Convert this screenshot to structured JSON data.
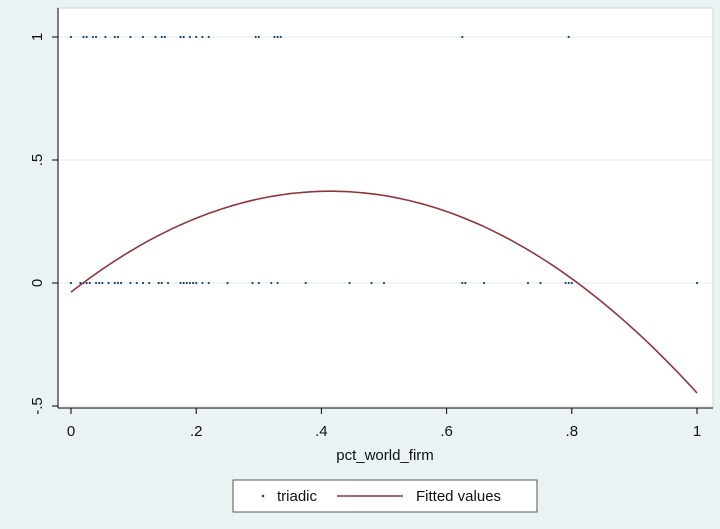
{
  "chart_data": {
    "type": "scatter",
    "xlabel": "pct_world_firm",
    "ylabel": "",
    "xlim": [
      0,
      1
    ],
    "ylim": [
      -0.5,
      1
    ],
    "x_ticks": [
      0,
      0.2,
      0.4,
      0.6,
      0.8,
      1
    ],
    "x_tick_labels": [
      "0",
      ".2",
      ".4",
      ".6",
      ".8",
      "1"
    ],
    "y_ticks": [
      -0.5,
      0,
      0.5,
      1
    ],
    "y_tick_labels": [
      "-.5",
      "0",
      ".5",
      "1"
    ],
    "grid": "horizontal",
    "legend_position": "bottom",
    "series": [
      {
        "name": "triadic",
        "kind": "scatter",
        "color": "#1a476f",
        "points": [
          [
            0.0,
            1
          ],
          [
            0.02,
            1
          ],
          [
            0.025,
            1
          ],
          [
            0.035,
            1
          ],
          [
            0.04,
            1
          ],
          [
            0.055,
            1
          ],
          [
            0.07,
            1
          ],
          [
            0.075,
            1
          ],
          [
            0.095,
            1
          ],
          [
            0.115,
            1
          ],
          [
            0.135,
            1
          ],
          [
            0.145,
            1
          ],
          [
            0.15,
            1
          ],
          [
            0.175,
            1
          ],
          [
            0.18,
            1
          ],
          [
            0.19,
            1
          ],
          [
            0.2,
            1
          ],
          [
            0.21,
            1
          ],
          [
            0.22,
            1
          ],
          [
            0.295,
            1
          ],
          [
            0.3,
            1
          ],
          [
            0.325,
            1
          ],
          [
            0.33,
            1
          ],
          [
            0.335,
            1
          ],
          [
            0.625,
            1
          ],
          [
            0.795,
            1
          ],
          [
            0.0,
            0
          ],
          [
            0.015,
            0
          ],
          [
            0.02,
            0
          ],
          [
            0.025,
            0
          ],
          [
            0.03,
            0
          ],
          [
            0.04,
            0
          ],
          [
            0.045,
            0
          ],
          [
            0.05,
            0
          ],
          [
            0.06,
            0
          ],
          [
            0.07,
            0
          ],
          [
            0.075,
            0
          ],
          [
            0.08,
            0
          ],
          [
            0.095,
            0
          ],
          [
            0.105,
            0
          ],
          [
            0.115,
            0
          ],
          [
            0.125,
            0
          ],
          [
            0.14,
            0
          ],
          [
            0.145,
            0
          ],
          [
            0.155,
            0
          ],
          [
            0.175,
            0
          ],
          [
            0.18,
            0
          ],
          [
            0.185,
            0
          ],
          [
            0.19,
            0
          ],
          [
            0.195,
            0
          ],
          [
            0.2,
            0
          ],
          [
            0.21,
            0
          ],
          [
            0.22,
            0
          ],
          [
            0.25,
            0
          ],
          [
            0.29,
            0
          ],
          [
            0.3,
            0
          ],
          [
            0.32,
            0
          ],
          [
            0.33,
            0
          ],
          [
            0.375,
            0
          ],
          [
            0.445,
            0
          ],
          [
            0.48,
            0
          ],
          [
            0.5,
            0
          ],
          [
            0.625,
            0
          ],
          [
            0.63,
            0
          ],
          [
            0.66,
            0
          ],
          [
            0.73,
            0
          ],
          [
            0.75,
            0
          ],
          [
            0.79,
            0
          ],
          [
            0.795,
            0
          ],
          [
            0.8,
            0
          ],
          [
            1.0,
            0
          ]
        ]
      },
      {
        "name": "Fitted values",
        "kind": "line",
        "color": "#90353b",
        "x": [
          0,
          0.05,
          0.1,
          0.15,
          0.2,
          0.25,
          0.3,
          0.35,
          0.4,
          0.45,
          0.5,
          0.55,
          0.6,
          0.65,
          0.7,
          0.75,
          0.8,
          0.85,
          0.9,
          0.95,
          1.0
        ],
        "y": [
          -0.037,
          0.05,
          0.128,
          0.198,
          0.258,
          0.306,
          0.342,
          0.364,
          0.372,
          0.365,
          0.342,
          0.302,
          0.246,
          0.173,
          0.083,
          -0.024,
          -0.147,
          -0.138,
          -0.225,
          -0.33,
          -0.452
        ]
      }
    ]
  }
}
